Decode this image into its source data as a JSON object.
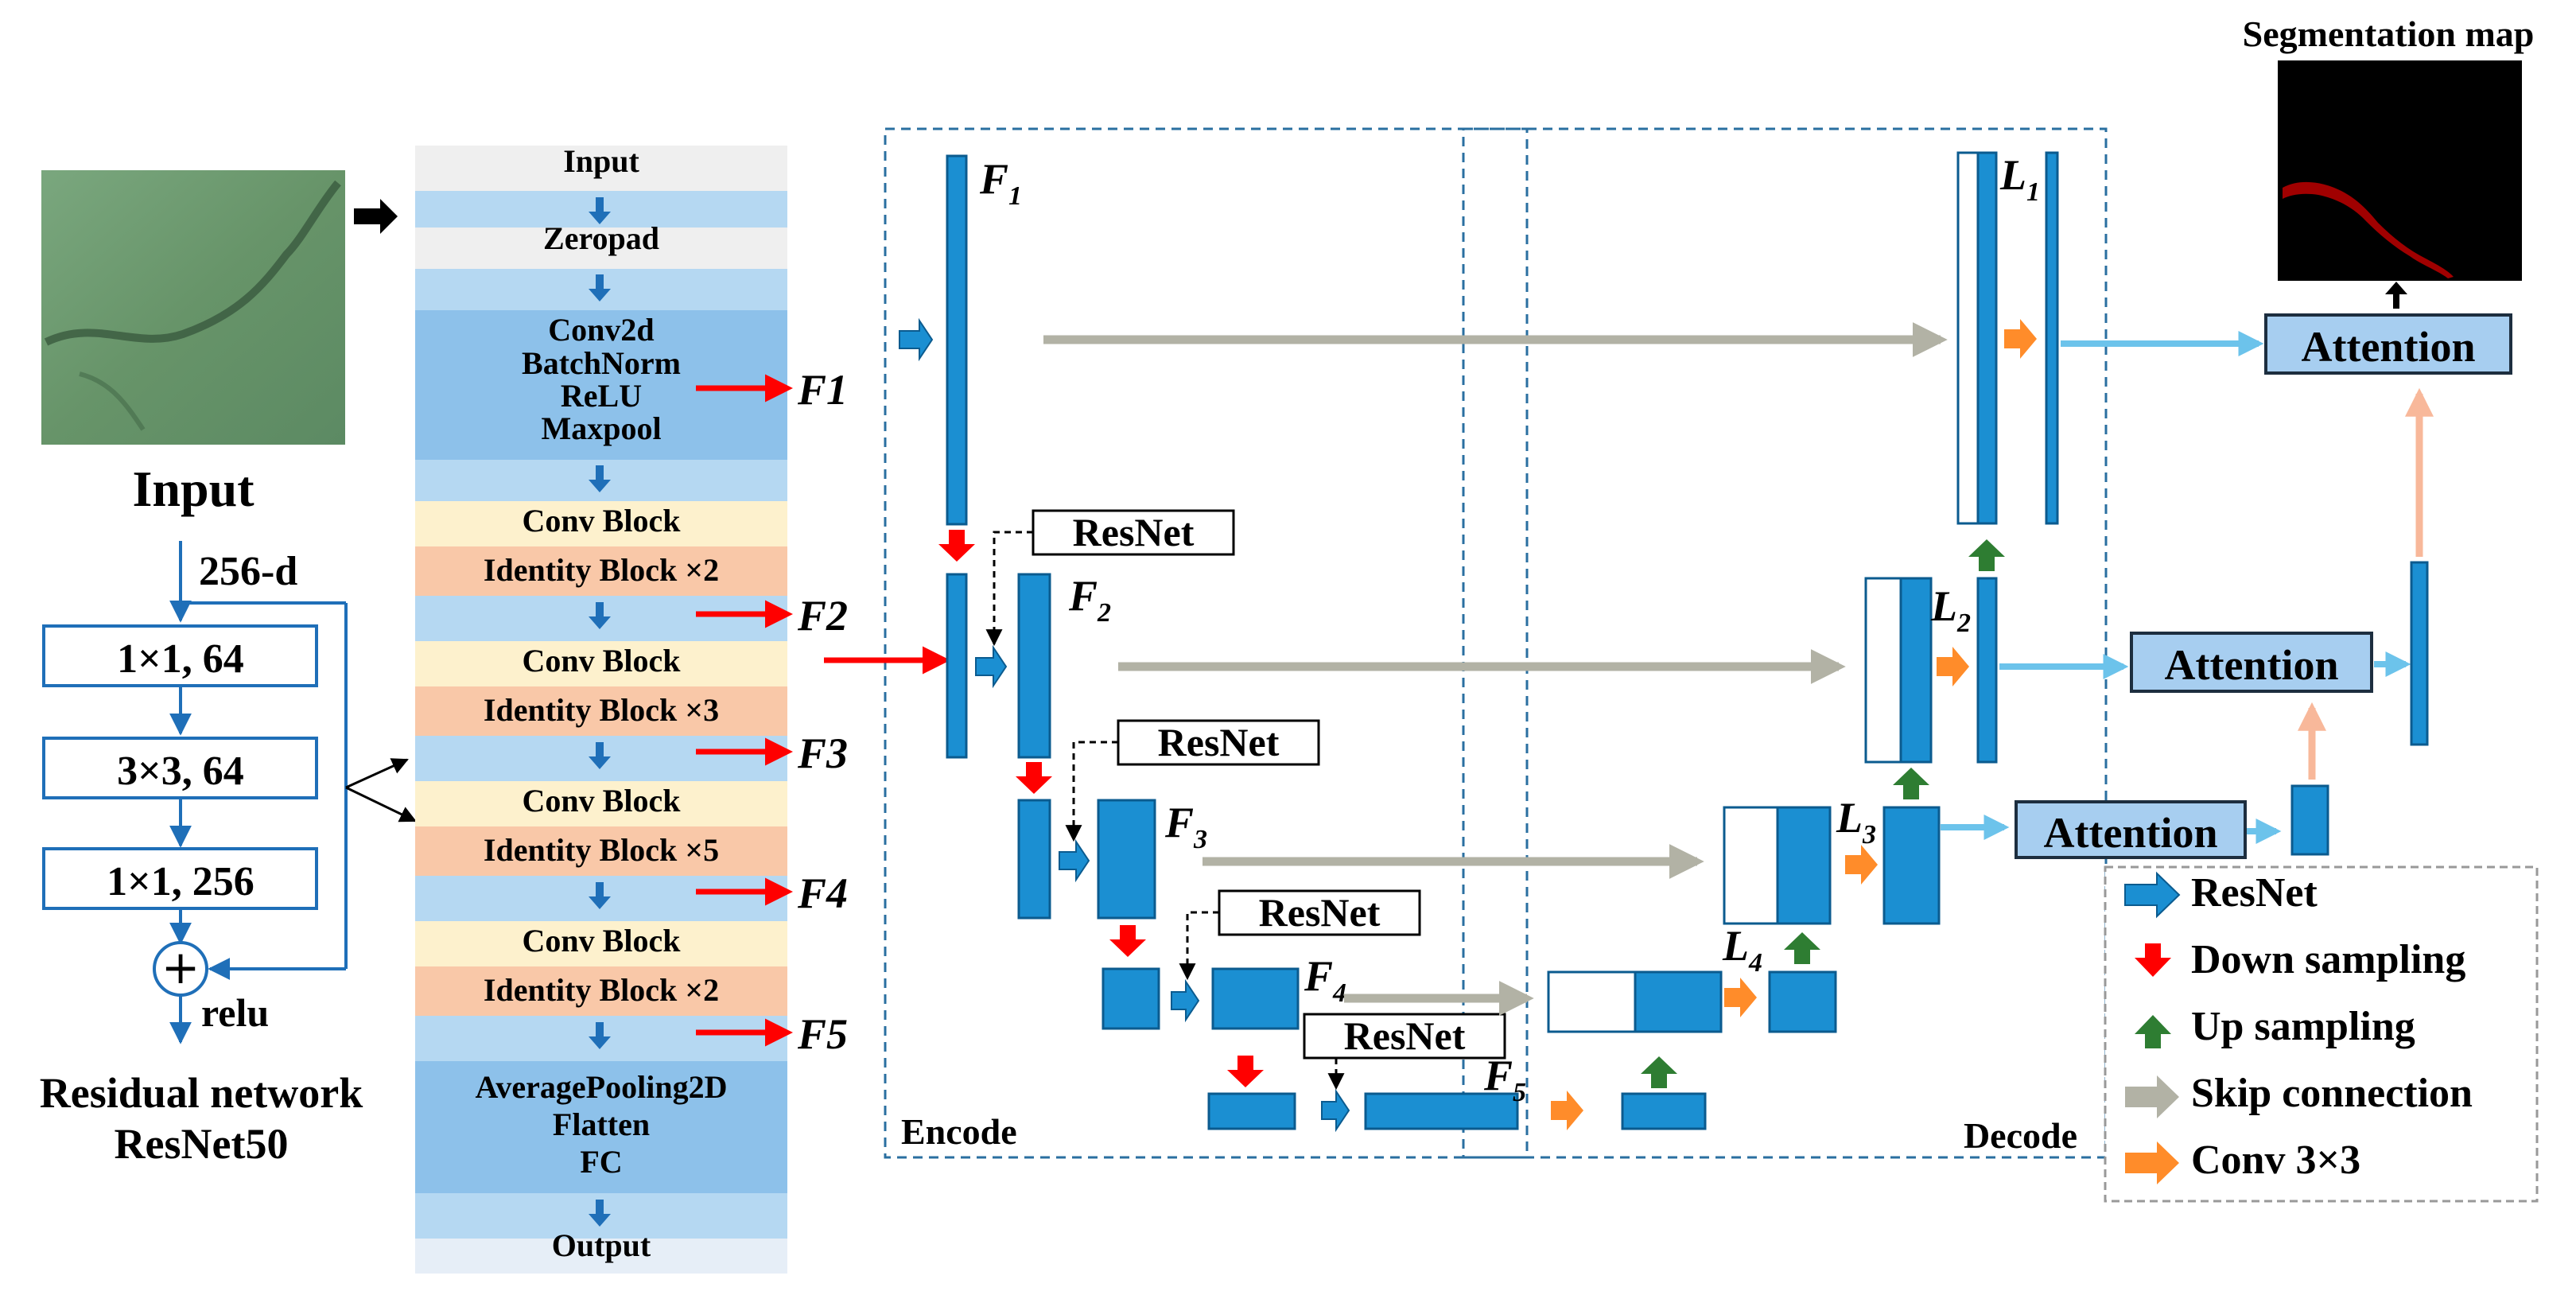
{
  "colors": {
    "blue_block": "#1b8fd2",
    "block_border": "#0b5b8f",
    "down_arrow": "#ff0000",
    "up_arrow": "#2e7d32",
    "skip_arrow": "#b2b2a5",
    "conv_arrow": "#ff8c2a",
    "attention_fill": "#a7cef0",
    "attention_line": "#6cc3eb",
    "peach_arrow": "#f8b89a",
    "dashed_frame": "#2a6fa0",
    "seg_map_bg": "#000000",
    "seg_map_crack": "#a00000",
    "input_img": "#6e9a72"
  },
  "input_panel": {
    "title": "Input",
    "image_icon": "input-crack-photo"
  },
  "residual": {
    "dim_label": "256-d",
    "layers": [
      "1×1, 64",
      "3×3, 64",
      "1×1,  256"
    ],
    "plus_symbol": "+",
    "activation": "relu",
    "caption_line1": "Residual network",
    "caption_line2": "ResNet50"
  },
  "resnet_column": {
    "input": "Input",
    "zeropad": "Zeropad",
    "stem": [
      "Conv2d",
      "BatchNorm",
      "ReLU",
      "Maxpool"
    ],
    "stages": [
      {
        "conv": "Conv Block",
        "identity": "Identity Block ×2"
      },
      {
        "conv": "Conv Block",
        "identity": "Identity Block ×3"
      },
      {
        "conv": "Conv Block",
        "identity": "Identity Block ×5"
      },
      {
        "conv": "Conv Block",
        "identity": "Identity Block ×2"
      }
    ],
    "head": [
      "AveragePooling2D",
      "Flatten",
      "FC"
    ],
    "output": "Output",
    "feature_outputs": [
      {
        "main": "F",
        "num": "1"
      },
      {
        "main": "F",
        "num": "2"
      },
      {
        "main": "F",
        "num": "3"
      },
      {
        "main": "F",
        "num": "4"
      },
      {
        "main": "F",
        "num": "5"
      }
    ]
  },
  "unet": {
    "encode_label": "Encode",
    "decode_label": "Decode",
    "resnet_box_label": "ResNet",
    "encoder_features": [
      {
        "main": "F",
        "sub": "1"
      },
      {
        "main": "F",
        "sub": "2"
      },
      {
        "main": "F",
        "sub": "3"
      },
      {
        "main": "F",
        "sub": "4"
      },
      {
        "main": "F",
        "sub": "5"
      }
    ],
    "decoder_features": [
      {
        "main": "L",
        "sub": "1"
      },
      {
        "main": "L",
        "sub": "2"
      },
      {
        "main": "L",
        "sub": "3"
      },
      {
        "main": "L",
        "sub": "4"
      }
    ],
    "attention_label": "Attention"
  },
  "segmentation_title": "Segmentation map",
  "legend": [
    {
      "icon": "resnet-arrow-icon",
      "label": "ResNet"
    },
    {
      "icon": "down-sampling-arrow-icon",
      "label": "Down sampling"
    },
    {
      "icon": "up-sampling-arrow-icon",
      "label": "Up sampling"
    },
    {
      "icon": "skip-connection-arrow-icon",
      "label": "Skip connection"
    },
    {
      "icon": "conv-arrow-icon",
      "label": "Conv 3×3"
    }
  ]
}
